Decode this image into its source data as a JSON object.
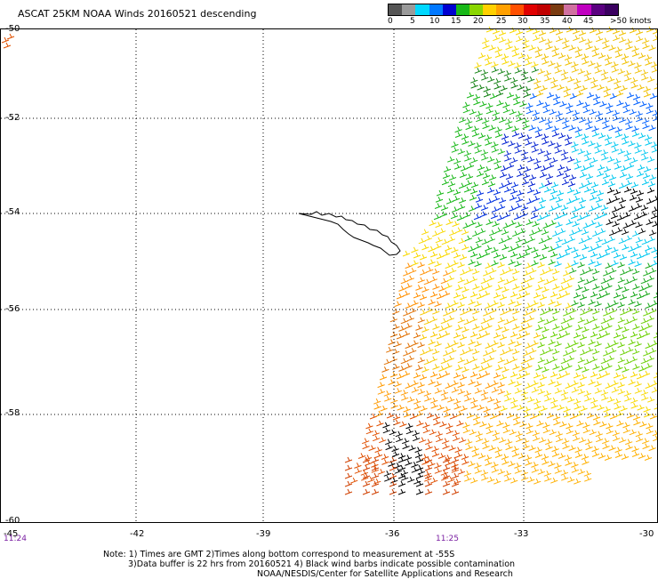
{
  "title": "ASCAT 25KM NOAA Winds 20160521 descending",
  "scale": {
    "colors": [
      "#555555",
      "#9a9a9a",
      "#00d8ff",
      "#0078ff",
      "#0000d0",
      "#18b818",
      "#8ad600",
      "#ffd000",
      "#ffa000",
      "#ff5000",
      "#e00000",
      "#c00000",
      "#7a3b10",
      "#d070a0",
      "#c000c0",
      "#5a0080",
      "#3a0060"
    ],
    "labels": [
      "0",
      "5",
      "10",
      "15",
      "20",
      "25",
      "30",
      "35",
      "40",
      "45",
      ">50 knots"
    ]
  },
  "axes": {
    "lat_labels": [
      "-50",
      "-52",
      "-54",
      "-56",
      "-58",
      "-60"
    ],
    "lon_labels": [
      "-45",
      "-42",
      "-39",
      "-36",
      "-33",
      "-30"
    ],
    "times": [
      "11:24",
      "11:25"
    ]
  },
  "notes": {
    "line1": "Note: 1) Times are GMT 2)Times along bottom correspond to measurement at -55S",
    "line2": "3)Data buffer is 22 hrs from 20160521 4) Black wind barbs indicate possible contamination",
    "line3": "NOAA/NESDIS/Center for Satellite Applications and Research"
  }
}
